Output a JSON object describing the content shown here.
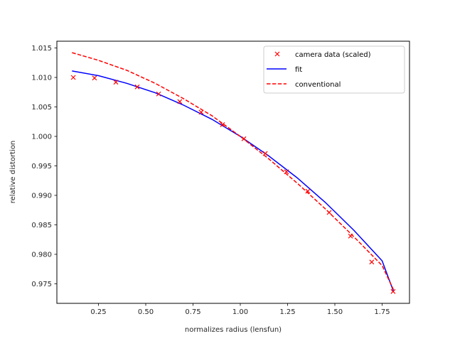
{
  "chart_data": {
    "type": "line",
    "title": "",
    "xlabel": "normalizes radius (lensfun)",
    "ylabel": "relative distortion",
    "xlim": [
      0.03,
      1.9
    ],
    "ylim": [
      0.9718,
      1.0156
    ],
    "grid": false,
    "legend_position": "upper right",
    "x_ticks": [
      "0.25",
      "0.50",
      "0.75",
      "1.00",
      "1.25",
      "1.50",
      "1.75"
    ],
    "x_tick_values": [
      0.25,
      0.5,
      0.75,
      1.0,
      1.25,
      1.5,
      1.75
    ],
    "y_ticks": [
      "0.975",
      "0.980",
      "0.985",
      "0.990",
      "0.995",
      "1.000",
      "1.005",
      "1.010",
      "1.015"
    ],
    "y_tick_values": [
      0.975,
      0.98,
      0.985,
      0.99,
      0.995,
      1.0,
      1.005,
      1.01,
      1.015
    ],
    "series": [
      {
        "name": "camera data (scaled)",
        "style": "markers-x",
        "color": "#ff0000",
        "x": [
          0.117,
          0.229,
          0.342,
          0.455,
          0.568,
          0.68,
          0.793,
          0.906,
          1.019,
          1.132,
          1.244,
          1.357,
          1.47,
          1.583,
          1.695,
          1.808
        ],
        "y": [
          1.01,
          1.0099,
          1.0092,
          1.0084,
          1.0072,
          1.0059,
          1.0041,
          1.002,
          0.9996,
          0.9971,
          0.994,
          0.9907,
          0.9871,
          0.9831,
          0.9787,
          0.9737
        ]
      },
      {
        "name": "fit",
        "style": "solid",
        "color": "#0000ff",
        "x": [
          0.11,
          0.25,
          0.4,
          0.55,
          0.7,
          0.85,
          1.0,
          1.15,
          1.3,
          1.45,
          1.6,
          1.75,
          1.81
        ],
        "y": [
          1.0111,
          1.0103,
          1.009,
          1.0074,
          1.0053,
          1.0029,
          1.0,
          0.9967,
          0.993,
          0.9888,
          0.9841,
          0.9789,
          0.9737
        ]
      },
      {
        "name": "conventional",
        "style": "dashed",
        "color": "#ff0000",
        "x": [
          0.11,
          0.25,
          0.4,
          0.55,
          0.7,
          0.85,
          1.0,
          1.15,
          1.3,
          1.45,
          1.6,
          1.75,
          1.81
        ],
        "y": [
          1.0142,
          1.0129,
          1.0112,
          1.009,
          1.0064,
          1.0035,
          1.0,
          0.9962,
          0.9921,
          0.9877,
          0.983,
          0.9781,
          0.974
        ]
      }
    ]
  },
  "legend": {
    "items": [
      {
        "label": "camera data (scaled)"
      },
      {
        "label": "fit"
      },
      {
        "label": "conventional"
      }
    ]
  }
}
